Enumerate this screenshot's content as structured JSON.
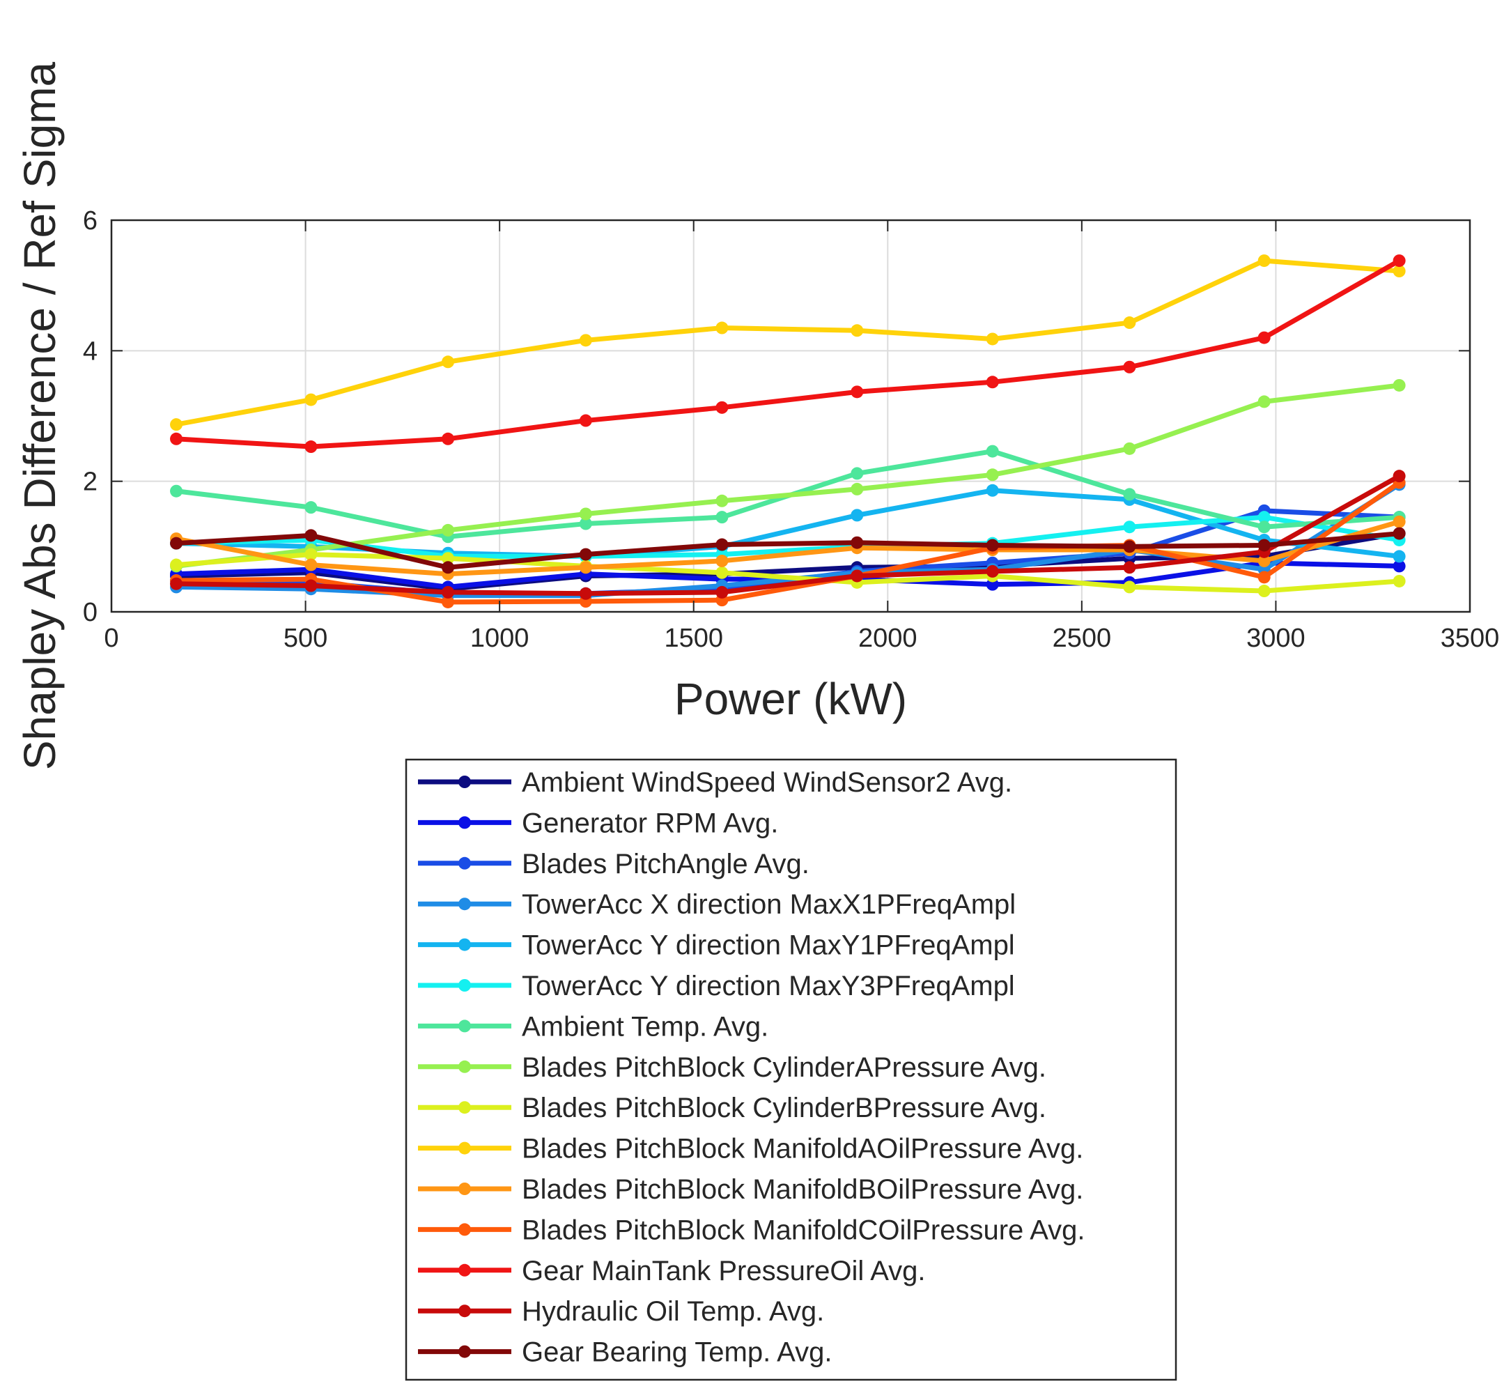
{
  "chart_data": {
    "type": "line",
    "title": "",
    "xlabel": "Power (kW)",
    "ylabel": "Shapley Abs Difference / Ref Sigma",
    "xlim": [
      0,
      3500
    ],
    "ylim": [
      0,
      6
    ],
    "xticks": [
      0,
      500,
      1000,
      1500,
      2000,
      2500,
      3000,
      3500
    ],
    "yticks": [
      0,
      2,
      4,
      6
    ],
    "grid": true,
    "legend_position": "below",
    "x": [
      167,
      514,
      867,
      1222,
      1573,
      1921,
      2270,
      2623,
      2970,
      3318
    ],
    "series": [
      {
        "name": "Ambient WindSpeed WindSensor2 Avg.",
        "color": "#0c0c80",
        "values": [
          0.55,
          0.6,
          0.35,
          0.55,
          0.58,
          0.68,
          0.7,
          0.82,
          0.85,
          1.2
        ]
      },
      {
        "name": "Generator RPM Avg.",
        "color": "#0a10e6",
        "values": [
          0.58,
          0.65,
          0.38,
          0.58,
          0.5,
          0.5,
          0.42,
          0.45,
          0.75,
          0.7
        ]
      },
      {
        "name": "Blades PitchAngle Avg.",
        "color": "#1a4de6",
        "values": [
          0.48,
          0.45,
          0.28,
          0.28,
          0.35,
          0.62,
          0.75,
          0.9,
          1.55,
          1.45
        ]
      },
      {
        "name": "TowerAcc X direction MaxX1PFreqAmpl",
        "color": "#1f8ce6",
        "values": [
          0.38,
          0.35,
          0.25,
          0.25,
          0.4,
          0.6,
          0.65,
          0.95,
          0.65,
          1.95
        ]
      },
      {
        "name": "TowerAcc Y direction MaxY1PFreqAmpl",
        "color": "#14b4f0",
        "values": [
          1.05,
          1.0,
          0.9,
          0.85,
          1.0,
          1.48,
          1.86,
          1.72,
          1.1,
          0.85
        ]
      },
      {
        "name": "TowerAcc Y direction MaxY3PFreqAmpl",
        "color": "#14f0f0",
        "values": [
          1.05,
          1.1,
          0.85,
          0.85,
          0.88,
          1.0,
          1.05,
          1.3,
          1.45,
          1.1
        ]
      },
      {
        "name": "Ambient Temp. Avg.",
        "color": "#4de69b",
        "values": [
          1.85,
          1.6,
          1.15,
          1.35,
          1.45,
          2.12,
          2.46,
          1.8,
          1.3,
          1.45
        ]
      },
      {
        "name": "Blades PitchBlock CylinderAPressure Avg.",
        "color": "#96f050",
        "values": [
          0.7,
          0.95,
          1.25,
          1.5,
          1.7,
          1.88,
          2.1,
          2.5,
          3.22,
          3.47
        ]
      },
      {
        "name": "Blades PitchBlock CylinderBPressure Avg.",
        "color": "#dcf01e",
        "values": [
          0.72,
          0.88,
          0.82,
          0.7,
          0.6,
          0.45,
          0.55,
          0.38,
          0.32,
          0.47
        ]
      },
      {
        "name": "Blades PitchBlock ManifoldAOilPressure Avg.",
        "color": "#ffd20a",
        "values": [
          2.87,
          3.25,
          3.83,
          4.16,
          4.35,
          4.31,
          4.18,
          4.43,
          5.38,
          5.22
        ]
      },
      {
        "name": "Blades PitchBlock ManifoldBOilPressure Avg.",
        "color": "#ff9614",
        "values": [
          1.12,
          0.72,
          0.58,
          0.68,
          0.78,
          0.98,
          0.95,
          0.95,
          0.78,
          1.38
        ]
      },
      {
        "name": "Blades PitchBlock ManifoldCOilPressure Avg.",
        "color": "#ff5a0a",
        "values": [
          0.48,
          0.5,
          0.15,
          0.16,
          0.18,
          0.55,
          0.98,
          1.02,
          0.53,
          1.98
        ]
      },
      {
        "name": "Gear MainTank PressureOil Avg.",
        "color": "#f01414",
        "values": [
          2.65,
          2.53,
          2.65,
          2.93,
          3.13,
          3.37,
          3.52,
          3.75,
          4.2,
          5.38
        ]
      },
      {
        "name": "Hydraulic Oil Temp. Avg.",
        "color": "#c80a0a",
        "values": [
          0.43,
          0.4,
          0.3,
          0.28,
          0.3,
          0.55,
          0.62,
          0.68,
          0.92,
          2.08
        ]
      },
      {
        "name": "Gear Bearing Temp. Avg.",
        "color": "#820808",
        "values": [
          1.05,
          1.17,
          0.68,
          0.88,
          1.03,
          1.06,
          1.02,
          1.0,
          1.02,
          1.2
        ]
      }
    ]
  }
}
